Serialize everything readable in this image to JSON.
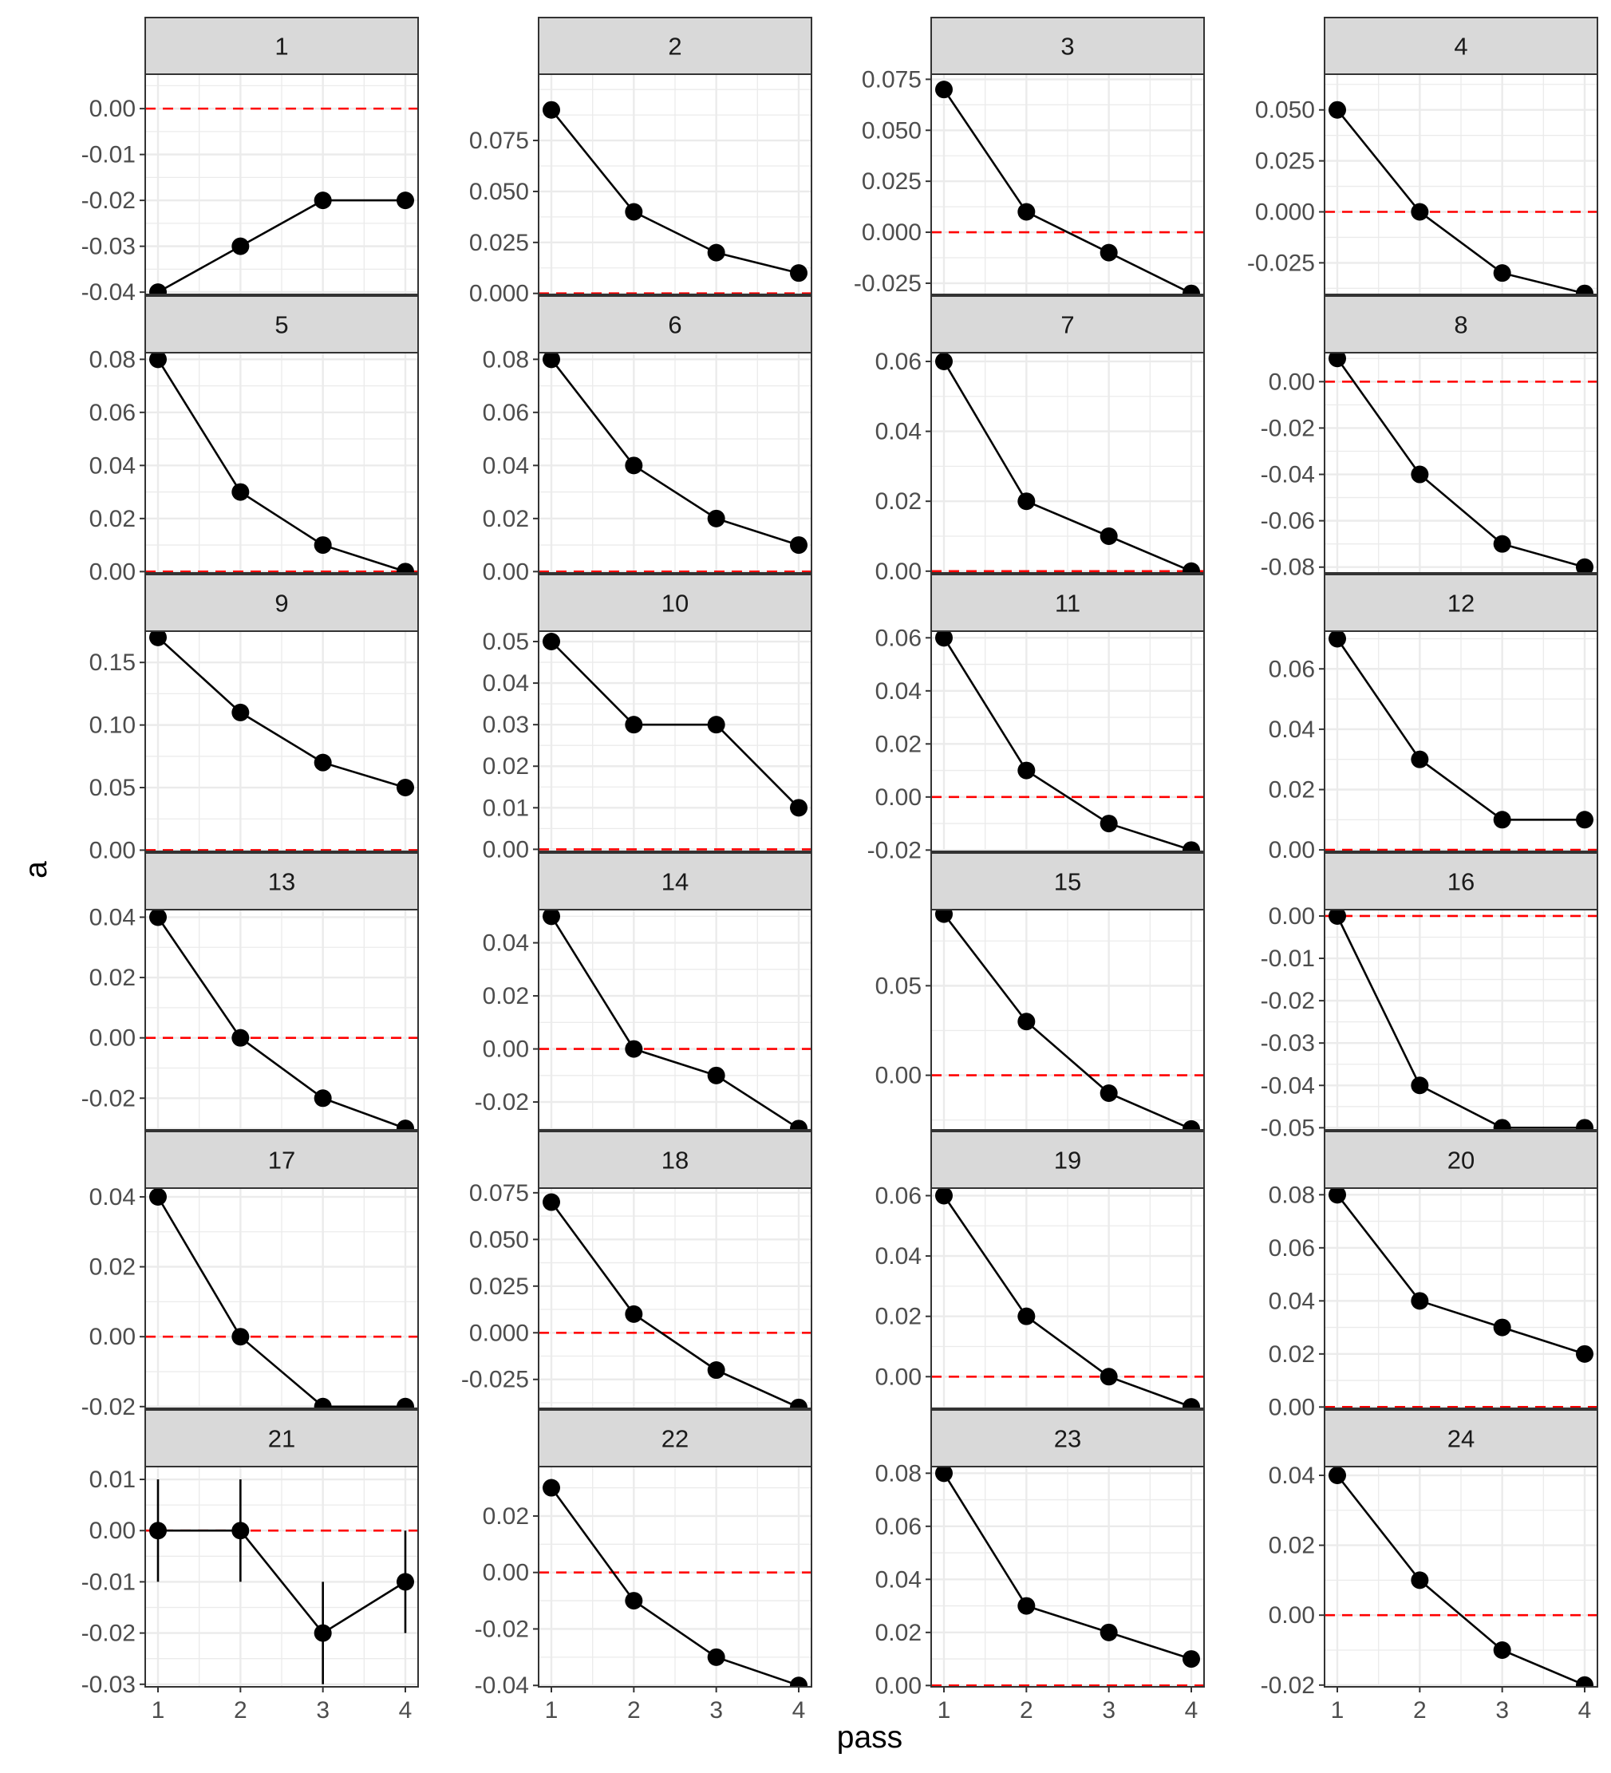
{
  "chart_data": {
    "type": "line",
    "layout": "facet-grid",
    "xlabel": "pass",
    "ylabel": "a",
    "x": [
      1,
      2,
      3,
      4
    ],
    "x_ticks": [
      1,
      2,
      3,
      4
    ],
    "grid": true,
    "reference_line": {
      "y": 0,
      "style": "dashed",
      "color": "#ff0000"
    },
    "colors": {
      "line": "#000000",
      "point": "#000000",
      "strip_fill": "#d9d9d9",
      "grid": "#ebebeb"
    },
    "panels": [
      {
        "label": "1",
        "y": [
          -0.04,
          -0.03,
          -0.02,
          -0.02
        ],
        "ylim": [
          -0.0405,
          0.0075
        ],
        "yticks": [
          "0.00",
          "-0.01",
          "-0.02",
          "-0.03",
          "-0.04"
        ]
      },
      {
        "label": "2",
        "y": [
          0.09,
          0.04,
          0.02,
          0.01
        ],
        "ylim": [
          -0.0005,
          0.1075
        ],
        "yticks": [
          "0.075",
          "0.050",
          "0.025",
          "0.000"
        ]
      },
      {
        "label": "3",
        "y": [
          0.07,
          0.01,
          -0.01,
          -0.03
        ],
        "ylim": [
          -0.0305,
          0.0775
        ],
        "yticks": [
          "0.075",
          "0.050",
          "0.025",
          "0.000",
          "-0.025"
        ]
      },
      {
        "label": "4",
        "y": [
          0.05,
          0.0,
          -0.03,
          -0.04
        ],
        "ylim": [
          -0.0405,
          0.0675
        ],
        "yticks": [
          "0.050",
          "0.025",
          "0.000",
          "-0.025"
        ]
      },
      {
        "label": "5",
        "y": [
          0.08,
          0.03,
          0.01,
          0.0
        ],
        "ylim": [
          -0.0005,
          0.0825
        ],
        "yticks": [
          "0.08",
          "0.06",
          "0.04",
          "0.02",
          "0.00"
        ]
      },
      {
        "label": "6",
        "y": [
          0.08,
          0.04,
          0.02,
          0.01
        ],
        "ylim": [
          -0.0005,
          0.0825
        ],
        "yticks": [
          "0.08",
          "0.06",
          "0.04",
          "0.02",
          "0.00"
        ]
      },
      {
        "label": "7",
        "y": [
          0.06,
          0.02,
          0.01,
          0.0
        ],
        "ylim": [
          -0.0005,
          0.0625
        ],
        "yticks": [
          "0.06",
          "0.04",
          "0.02",
          "0.00"
        ]
      },
      {
        "label": "8",
        "y": [
          0.01,
          -0.04,
          -0.07,
          -0.08
        ],
        "ylim": [
          -0.0825,
          0.0125
        ],
        "yticks": [
          "0.00",
          "-0.02",
          "-0.04",
          "-0.06",
          "-0.08"
        ]
      },
      {
        "label": "9",
        "y": [
          0.17,
          0.11,
          0.07,
          0.05
        ],
        "ylim": [
          -0.001,
          0.175
        ],
        "yticks": [
          "0.15",
          "0.10",
          "0.05",
          "0.00"
        ]
      },
      {
        "label": "10",
        "y": [
          0.05,
          0.03,
          0.03,
          0.01
        ],
        "ylim": [
          -0.0005,
          0.0525
        ],
        "yticks": [
          "0.05",
          "0.04",
          "0.03",
          "0.02",
          "0.01",
          "0.00"
        ]
      },
      {
        "label": "11",
        "y": [
          0.06,
          0.01,
          -0.01,
          -0.02
        ],
        "ylim": [
          -0.0205,
          0.0625
        ],
        "yticks": [
          "0.06",
          "0.04",
          "0.02",
          "0.00",
          "-0.02"
        ]
      },
      {
        "label": "12",
        "y": [
          0.07,
          0.03,
          0.01,
          0.01
        ],
        "ylim": [
          -0.0005,
          0.0725
        ],
        "yticks": [
          "0.06",
          "0.04",
          "0.02",
          "0.00"
        ]
      },
      {
        "label": "13",
        "y": [
          0.04,
          0.0,
          -0.02,
          -0.03
        ],
        "ylim": [
          -0.0305,
          0.0425
        ],
        "yticks": [
          "0.04",
          "0.02",
          "0.00",
          "-0.02"
        ]
      },
      {
        "label": "14",
        "y": [
          0.05,
          0.0,
          -0.01,
          -0.03
        ],
        "ylim": [
          -0.0305,
          0.0525
        ],
        "yticks": [
          "0.04",
          "0.02",
          "0.00",
          "-0.02"
        ]
      },
      {
        "label": "15",
        "y": [
          0.09,
          0.03,
          -0.01,
          -0.03
        ],
        "ylim": [
          -0.0305,
          0.0925
        ],
        "yticks": [
          "0.05",
          "0.00"
        ]
      },
      {
        "label": "16",
        "y": [
          0.0,
          -0.04,
          -0.05,
          -0.05
        ],
        "ylim": [
          -0.0505,
          0.0015
        ],
        "yticks": [
          "0.00",
          "-0.01",
          "-0.02",
          "-0.03",
          "-0.04",
          "-0.05"
        ]
      },
      {
        "label": "17",
        "y": [
          0.04,
          0.0,
          -0.02,
          -0.02
        ],
        "ylim": [
          -0.0205,
          0.0425
        ],
        "yticks": [
          "0.04",
          "0.02",
          "0.00",
          "-0.02"
        ]
      },
      {
        "label": "18",
        "y": [
          0.07,
          0.01,
          -0.02,
          -0.04
        ],
        "ylim": [
          -0.0405,
          0.0775
        ],
        "yticks": [
          "0.075",
          "0.050",
          "0.025",
          "0.000",
          "-0.025"
        ]
      },
      {
        "label": "19",
        "y": [
          0.06,
          0.02,
          0.0,
          -0.01
        ],
        "ylim": [
          -0.0105,
          0.0625
        ],
        "yticks": [
          "0.06",
          "0.04",
          "0.02",
          "0.00"
        ]
      },
      {
        "label": "20",
        "y": [
          0.08,
          0.04,
          0.03,
          0.02
        ],
        "ylim": [
          -0.0005,
          0.0825
        ],
        "yticks": [
          "0.08",
          "0.06",
          "0.04",
          "0.02",
          "0.00"
        ]
      },
      {
        "label": "21",
        "y": [
          0.0,
          0.0,
          -0.02,
          -0.01
        ],
        "ylim": [
          -0.0305,
          0.0125
        ],
        "yticks": [
          "0.01",
          "0.00",
          "-0.01",
          "-0.02",
          "-0.03"
        ],
        "error": [
          [
            -0.01,
            0.01
          ],
          [
            -0.01,
            0.01
          ],
          [
            -0.03,
            -0.01
          ],
          [
            -0.02,
            0.0
          ]
        ]
      },
      {
        "label": "22",
        "y": [
          0.03,
          -0.01,
          -0.03,
          -0.04
        ],
        "ylim": [
          -0.0405,
          0.0375
        ],
        "yticks": [
          "0.02",
          "0.00",
          "-0.02",
          "-0.04"
        ]
      },
      {
        "label": "23",
        "y": [
          0.08,
          0.03,
          0.02,
          0.01
        ],
        "ylim": [
          -0.0005,
          0.0825
        ],
        "yticks": [
          "0.08",
          "0.06",
          "0.04",
          "0.02",
          "0.00"
        ]
      },
      {
        "label": "24",
        "y": [
          0.04,
          0.01,
          -0.01,
          -0.02
        ],
        "ylim": [
          -0.0205,
          0.0425
        ],
        "yticks": [
          "0.04",
          "0.02",
          "0.00",
          "-0.02"
        ]
      }
    ]
  }
}
